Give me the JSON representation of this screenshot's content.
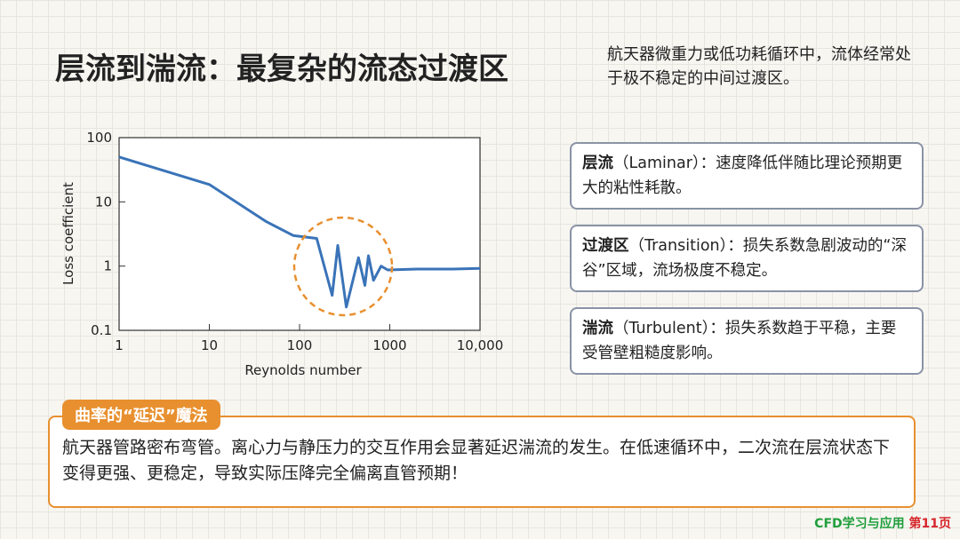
{
  "header": {
    "title": "层流到湍流：最复杂的流态过渡区",
    "note": "航天器微重力或低功耗循环中，流体经常处于极不稳定的中间过渡区。"
  },
  "chart_data": {
    "type": "line",
    "x_label": "Reynolds number",
    "y_label": "Loss coefficient",
    "x": [
      1,
      10,
      43,
      85,
      155,
      230,
      265,
      330,
      390,
      450,
      530,
      580,
      660,
      800,
      950,
      2000,
      5000,
      10000
    ],
    "values": [
      50,
      18.6,
      4.9,
      3.0,
      2.7,
      0.35,
      2.1,
      0.23,
      0.6,
      1.35,
      0.5,
      1.45,
      0.6,
      1.0,
      0.87,
      0.9,
      0.9,
      0.92
    ],
    "color": "#3a73b8",
    "xlim": [
      1,
      10000
    ],
    "ylim": [
      0.1,
      100
    ],
    "xticks": [
      1,
      10,
      100,
      1000,
      {
        "value": 10000,
        "label": "10,000"
      }
    ],
    "yticks": [
      0.1,
      1,
      10,
      100
    ],
    "log_x": true,
    "log_y": true,
    "highlight_color": "#e8902f"
  },
  "cards": [
    {
      "term": "层流",
      "text": "（Laminar）：速度降低伴随比理论预期更大的粘性耗散。"
    },
    {
      "term": "过渡区",
      "text": "（Transition）：损失系数急剧波动的“深谷”区域，流场极度不稳定。"
    },
    {
      "term": "湍流",
      "text": "（Turbulent）：损失系数趋于平稳，主要受管壁粗糙度影响。"
    }
  ],
  "callout": {
    "tag": "曲率的“延迟”魔法",
    "text": "航天器管路密布弯管。离心力与静压力的交互作用会显著延迟湍流的发生。在低速循环中，二次流在层流状态下变得更强、更稳定，导致实际压降完全偏离直管预期！"
  },
  "footer": {
    "brand": "CFD学习与应用",
    "page": "第11页"
  }
}
